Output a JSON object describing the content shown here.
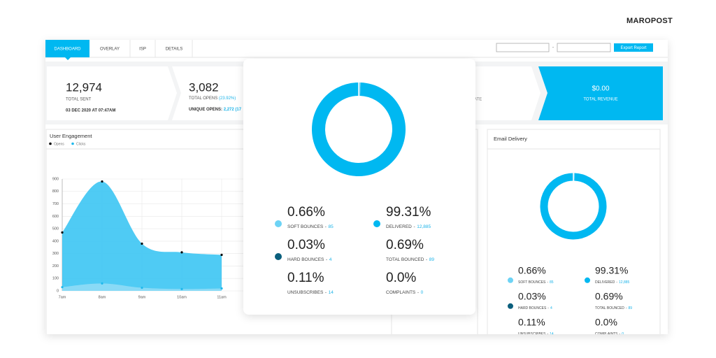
{
  "logo": "MAROPOST",
  "tabs": [
    "DASHBOARD",
    "OVERLAY",
    "ISP",
    "DETAILS"
  ],
  "date_separator": "-",
  "export_button": "Export Report",
  "summary": {
    "sent": {
      "value": "12,974",
      "label": "TOTAL SENT",
      "note": "03 DEC 2020 AT 07:47AM"
    },
    "opens": {
      "value": "3,082",
      "label": "TOTAL OPENS",
      "label_extra": "(23.92%)",
      "note": "UNIQUE OPENS:",
      "note_extra": "2,272 (17"
    },
    "rate": {
      "label": "ATE"
    },
    "revenue": {
      "value": "$0.00",
      "label": "TOTAL REVENUE"
    }
  },
  "engagement": {
    "title": "User Engagement",
    "x": [
      "7am",
      "8am",
      "9am",
      "10am",
      "11am"
    ],
    "series": [
      {
        "name": "Opens",
        "color": "#000000",
        "fill": "#3cc5f3",
        "values": [
          470,
          880,
          380,
          310,
          290
        ]
      },
      {
        "name": "Clicks",
        "color": "#1fb8ec",
        "fill": "#8fdcf6",
        "values": [
          30,
          60,
          25,
          15,
          20
        ]
      }
    ],
    "ylim": [
      0,
      900
    ],
    "yticks": [
      0,
      100,
      200,
      300,
      400,
      500,
      600,
      700,
      800,
      900
    ],
    "grid": true
  },
  "delivery": {
    "title": "Email Delivery",
    "separator": "-",
    "stats": [
      {
        "percent": 0.66,
        "percent_label": "0.66%",
        "label": "SOFT BOUNCES",
        "count": "85",
        "color": "#6dd3f5"
      },
      {
        "percent": 99.31,
        "percent_label": "99.31%",
        "label": "DELIVERED",
        "count": "12,885",
        "color": "#00b8f1"
      },
      {
        "percent": 0.03,
        "percent_label": "0.03%",
        "label": "HARD BOUNCES",
        "count": "4",
        "color": "#0b5f7d"
      },
      {
        "percent": 0.69,
        "percent_label": "0.69%",
        "label": "TOTAL BOUNCED",
        "count": "89"
      },
      {
        "percent": 0.11,
        "percent_label": "0.11%",
        "label": "UNSUBSCRIBES",
        "count": "14"
      },
      {
        "percent": 0.0,
        "percent_label": "0.0%",
        "label": "COMPLAINTS",
        "count": "0"
      }
    ]
  }
}
